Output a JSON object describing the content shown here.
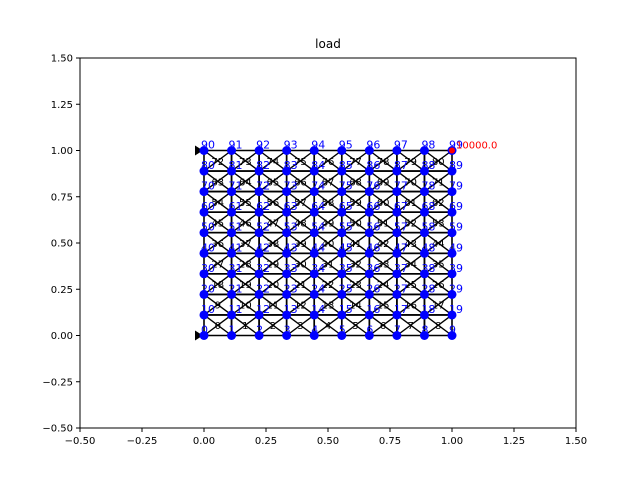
{
  "chart_data": {
    "type": "scatter",
    "title": "load",
    "xlabel": "",
    "ylabel": "",
    "xlim": [
      -0.5,
      1.5
    ],
    "ylim": [
      -0.5,
      1.5
    ],
    "x_ticks": [
      "−0.50",
      "−0.25",
      "0.00",
      "0.25",
      "0.50",
      "0.75",
      "1.00",
      "1.25",
      "1.50"
    ],
    "y_ticks": [
      "−0.50",
      "−0.25",
      "0.00",
      "0.25",
      "0.50",
      "0.75",
      "1.00",
      "1.25",
      "1.50"
    ],
    "grid": false,
    "mesh": {
      "nodes_x": 10,
      "nodes_y": 10,
      "x_range": [
        0.0,
        1.0
      ],
      "y_range": [
        0.0,
        1.0
      ],
      "node_labels": [
        "0",
        "1",
        "2",
        "3",
        "4",
        "5",
        "6",
        "7",
        "8",
        "9",
        "10",
        "11",
        "12",
        "13",
        "14",
        "15",
        "16",
        "17",
        "18",
        "19",
        "20",
        "21",
        "22",
        "23",
        "24",
        "25",
        "26",
        "27",
        "28",
        "29",
        "30",
        "31",
        "32",
        "33",
        "34",
        "35",
        "36",
        "37",
        "38",
        "39",
        "40",
        "41",
        "42",
        "43",
        "44",
        "45",
        "46",
        "47",
        "48",
        "49",
        "50",
        "51",
        "52",
        "53",
        "54",
        "55",
        "56",
        "57",
        "58",
        "59",
        "60",
        "61",
        "62",
        "63",
        "64",
        "65",
        "66",
        "67",
        "68",
        "69",
        "70",
        "71",
        "72",
        "73",
        "74",
        "75",
        "76",
        "77",
        "78",
        "79",
        "80",
        "81",
        "82",
        "83",
        "84",
        "85",
        "86",
        "87",
        "88",
        "89",
        "90",
        "91",
        "92",
        "93",
        "94",
        "95",
        "96",
        "97",
        "98",
        "99"
      ],
      "element_count": 81
    },
    "supports": [
      {
        "node": "0",
        "x": 0.0,
        "y": 0.0
      },
      {
        "node": "90",
        "x": 0.0,
        "y": 1.0
      }
    ],
    "load": {
      "node": "99",
      "x": 1.0,
      "y": 1.0,
      "label": "10000.0"
    },
    "colors": {
      "node": "#0000ff",
      "node_label": "#0000ff",
      "element_line": "#000000",
      "element_label": "#000000",
      "support": "#000000",
      "load_label": "#ff0000"
    }
  }
}
